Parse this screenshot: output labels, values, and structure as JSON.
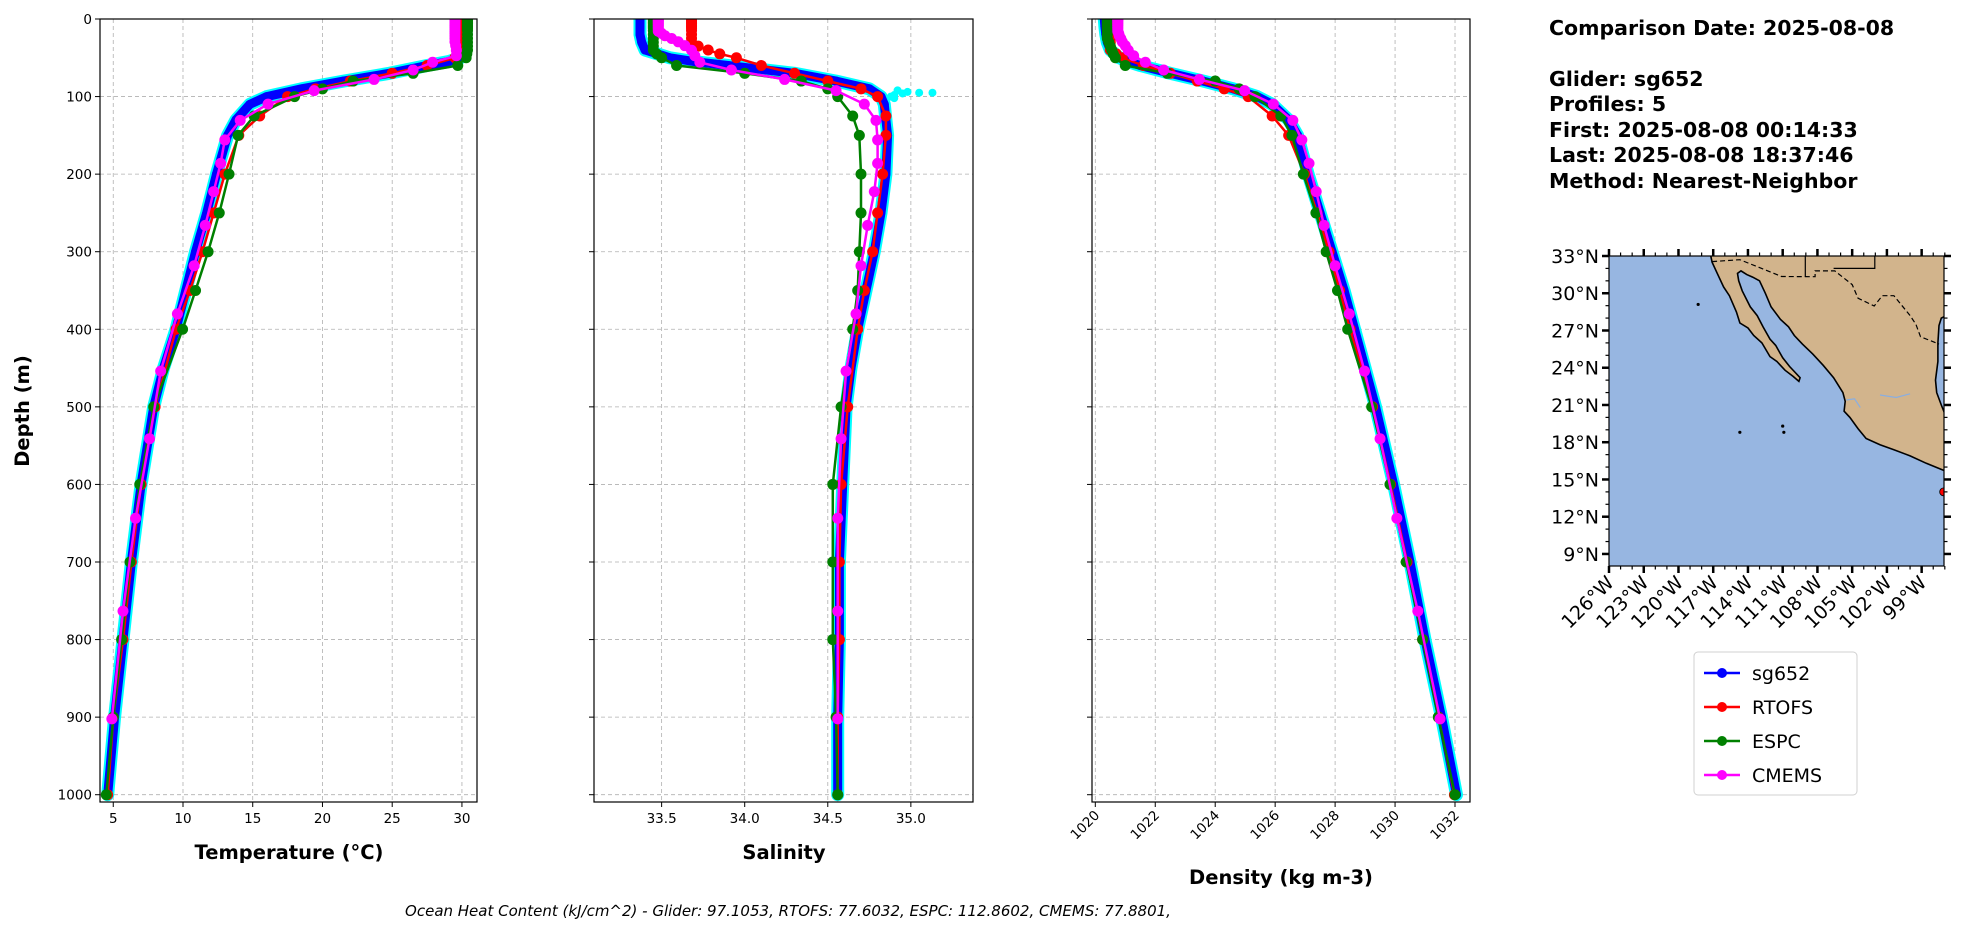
{
  "info": {
    "comparison_date": "Comparison Date: 2025-08-08",
    "glider": "Glider: sg652",
    "profiles": "Profiles: 5",
    "first": "First: 2025-08-08 00:14:33",
    "last": "Last: 2025-08-08 18:37:46",
    "method": "Method: Nearest-Neighbor"
  },
  "footer": "Ocean Heat Content (kJ/cm^2) - Glider: 97.1053,  RTOFS: 77.6032,  ESPC: 112.8602,  CMEMS: 77.8801,",
  "legend": [
    {
      "name": "sg652",
      "color": "#0000ff"
    },
    {
      "name": "RTOFS",
      "color": "#ff0000"
    },
    {
      "name": "ESPC",
      "color": "#008000"
    },
    {
      "name": "CMEMS",
      "color": "#ff00ff"
    }
  ],
  "colors": {
    "glider": "#0000ff",
    "glider_raw": "#00ffff",
    "rtofs": "#ff0000",
    "espc": "#008000",
    "cmems": "#ff00ff",
    "ocean": "#97b6e1",
    "land": "#d2b48c",
    "grid": "#b0b0b0"
  },
  "chart_data": [
    {
      "type": "line",
      "ylabel": "Depth (m)",
      "xlabel": "Temperature (°C)",
      "xlim": [
        4.05,
        31.08
      ],
      "ylim": [
        1009.4,
        0
      ],
      "xticks": [
        5,
        10,
        15,
        20,
        25,
        30
      ],
      "yticks": [
        0,
        100,
        200,
        300,
        400,
        500,
        600,
        700,
        800,
        900,
        1000
      ],
      "grid": true,
      "series": [
        {
          "name": "sg652",
          "depth": [
            0,
            10,
            20,
            30,
            40,
            50,
            55,
            60,
            70,
            80,
            90,
            100,
            110,
            130,
            150,
            200,
            250,
            300,
            350,
            400,
            450,
            500,
            600,
            700,
            800,
            900,
            1000
          ],
          "values": [
            30.3,
            30.3,
            30.3,
            30.2,
            30.1,
            29.9,
            29.0,
            27.5,
            24.8,
            21.5,
            18.5,
            16.0,
            14.8,
            13.8,
            13.2,
            12.4,
            11.7,
            10.9,
            10.2,
            9.5,
            8.6,
            7.9,
            7.0,
            6.3,
            5.7,
            5.1,
            4.6
          ]
        },
        {
          "name": "RTOFS",
          "depth": [
            0,
            2,
            4,
            6,
            8,
            10,
            12,
            15,
            20,
            25,
            30,
            35,
            40,
            45,
            50,
            60,
            70,
            80,
            90,
            100,
            125,
            150,
            200,
            250,
            300,
            350,
            400,
            500,
            600,
            700,
            800,
            900,
            1000
          ],
          "values": [
            29.9,
            29.9,
            29.9,
            29.9,
            29.9,
            29.9,
            29.9,
            29.9,
            29.9,
            29.9,
            29.9,
            29.9,
            29.9,
            29.8,
            29.5,
            27.5,
            25.0,
            22.0,
            19.5,
            17.5,
            15.5,
            14.0,
            13.0,
            12.2,
            11.4,
            10.5,
            9.5,
            8.0,
            7.0,
            6.3,
            5.7,
            5.0,
            4.6
          ]
        },
        {
          "name": "ESPC",
          "depth": [
            0,
            2,
            4,
            6,
            8,
            10,
            12,
            15,
            20,
            25,
            30,
            35,
            40,
            45,
            50,
            60,
            70,
            80,
            90,
            100,
            125,
            150,
            200,
            250,
            300,
            350,
            400,
            500,
            600,
            700,
            800,
            900,
            1000
          ],
          "values": [
            30.4,
            30.4,
            30.4,
            30.4,
            30.4,
            30.4,
            30.4,
            30.4,
            30.4,
            30.4,
            30.4,
            30.4,
            30.4,
            30.35,
            30.3,
            29.7,
            26.5,
            22.2,
            20.0,
            18.0,
            15.1,
            13.95,
            13.3,
            12.6,
            11.8,
            10.9,
            9.97,
            7.9,
            6.9,
            6.2,
            5.6,
            5.0,
            4.5
          ]
        },
        {
          "name": "CMEMS",
          "depth": [
            0.5,
            1.5,
            2.6,
            3.8,
            5.1,
            6.4,
            7.9,
            9.6,
            11.4,
            13.5,
            15.8,
            18.5,
            21.6,
            25.2,
            29.4,
            34.4,
            40.3,
            47.4,
            55.8,
            65.8,
            77.9,
            92.3,
            109.7,
            130.7,
            155.9,
            186.1,
            222.5,
            266.0,
            318.1,
            380.2,
            453.9,
            541.1,
            643.6,
            763.3,
            902.3
          ],
          "values": [
            29.5,
            29.5,
            29.5,
            29.5,
            29.5,
            29.5,
            29.5,
            29.5,
            29.5,
            29.5,
            29.5,
            29.5,
            29.5,
            29.5,
            29.5,
            29.55,
            29.6,
            29.6,
            27.9,
            26.5,
            23.7,
            19.4,
            16.1,
            14.1,
            13.0,
            12.7,
            12.2,
            11.6,
            10.8,
            9.6,
            8.4,
            7.6,
            6.6,
            5.7,
            4.9
          ]
        }
      ]
    },
    {
      "type": "line",
      "xlabel": "Salinity",
      "xlim": [
        33.093,
        35.374
      ],
      "ylim": [
        1009.4,
        0
      ],
      "xticks": [
        "33.5",
        "34.0",
        "34.5",
        "35.0"
      ],
      "yticks": [
        0,
        100,
        200,
        300,
        400,
        500,
        600,
        700,
        800,
        900,
        1000
      ],
      "grid": true,
      "series": [
        {
          "name": "sg652",
          "depth": [
            0,
            10,
            20,
            30,
            40,
            50,
            55,
            60,
            70,
            80,
            90,
            100,
            110,
            130,
            150,
            200,
            250,
            300,
            350,
            400,
            450,
            500,
            600,
            700,
            800,
            900,
            1000
          ],
          "values": [
            33.37,
            33.37,
            33.37,
            33.38,
            33.4,
            33.55,
            33.7,
            33.9,
            34.3,
            34.55,
            34.75,
            34.82,
            34.84,
            34.85,
            34.86,
            34.85,
            34.82,
            34.78,
            34.73,
            34.68,
            34.64,
            34.61,
            34.59,
            34.57,
            34.57,
            34.56,
            34.56
          ],
          "raw_outliers": [
            [
              92,
              34.92
            ],
            [
              94,
              34.98
            ],
            [
              95,
              35.05
            ],
            [
              95,
              35.13
            ],
            [
              96,
              34.95
            ],
            [
              98,
              34.9
            ],
            [
              100,
              34.88
            ],
            [
              102,
              34.9
            ]
          ]
        },
        {
          "name": "RTOFS",
          "depth": [
            0,
            2,
            4,
            6,
            8,
            10,
            12,
            15,
            20,
            25,
            30,
            35,
            40,
            45,
            50,
            60,
            70,
            80,
            90,
            100,
            125,
            150,
            200,
            250,
            300,
            350,
            400,
            500,
            600,
            700,
            800,
            900,
            1000
          ],
          "values": [
            33.68,
            33.68,
            33.68,
            33.68,
            33.68,
            33.68,
            33.68,
            33.68,
            33.68,
            33.68,
            33.68,
            33.72,
            33.78,
            33.85,
            33.95,
            34.1,
            34.3,
            34.5,
            34.7,
            34.8,
            34.85,
            34.85,
            34.83,
            34.8,
            34.77,
            34.72,
            34.68,
            34.62,
            34.58,
            34.57,
            34.57,
            34.56,
            34.56
          ]
        },
        {
          "name": "ESPC",
          "depth": [
            0,
            2,
            4,
            6,
            8,
            10,
            12,
            15,
            20,
            25,
            30,
            35,
            40,
            45,
            50,
            60,
            70,
            80,
            90,
            100,
            125,
            150,
            200,
            250,
            300,
            350,
            400,
            500,
            600,
            700,
            800,
            900,
            1000
          ],
          "values": [
            33.45,
            33.45,
            33.45,
            33.45,
            33.45,
            33.45,
            33.45,
            33.45,
            33.45,
            33.45,
            33.45,
            33.45,
            33.45,
            33.47,
            33.5,
            33.59,
            34.0,
            34.34,
            34.5,
            34.56,
            34.65,
            34.69,
            34.7,
            34.7,
            34.69,
            34.68,
            34.65,
            34.58,
            34.53,
            34.53,
            34.53,
            34.55,
            34.56
          ]
        },
        {
          "name": "CMEMS",
          "depth": [
            0.5,
            1.5,
            2.6,
            3.8,
            5.1,
            6.4,
            7.9,
            9.6,
            11.4,
            13.5,
            15.8,
            18.5,
            21.6,
            25.2,
            29.4,
            34.4,
            40.3,
            47.4,
            55.8,
            65.8,
            77.9,
            92.3,
            109.7,
            130.7,
            155.9,
            186.1,
            222.5,
            266.0,
            318.1,
            380.2,
            453.9,
            541.1,
            643.6,
            763.3,
            902.3
          ],
          "values": [
            33.48,
            33.48,
            33.48,
            33.48,
            33.48,
            33.48,
            33.48,
            33.48,
            33.48,
            33.48,
            33.48,
            33.5,
            33.52,
            33.56,
            33.6,
            33.64,
            33.68,
            33.7,
            33.73,
            33.92,
            34.24,
            34.55,
            34.72,
            34.79,
            34.8,
            34.8,
            34.78,
            34.74,
            34.7,
            34.67,
            34.61,
            34.58,
            34.56,
            34.56,
            34.56
          ]
        }
      ]
    },
    {
      "type": "line",
      "xlabel": "Density (kg m-3)",
      "xlim": [
        1019.89,
        1032.5
      ],
      "ylim": [
        1009.4,
        0
      ],
      "xticks": [
        1020,
        1022,
        1024,
        1026,
        1028,
        1030,
        1032
      ],
      "yticks": [
        0,
        100,
        200,
        300,
        400,
        500,
        600,
        700,
        800,
        900,
        1000
      ],
      "grid": true,
      "series": [
        {
          "name": "sg652",
          "depth": [
            0,
            10,
            20,
            30,
            40,
            50,
            55,
            60,
            70,
            80,
            90,
            100,
            110,
            130,
            150,
            200,
            250,
            300,
            350,
            400,
            450,
            500,
            600,
            700,
            800,
            900,
            1000
          ],
          "values": [
            1020.3,
            1020.32,
            1020.35,
            1020.4,
            1020.5,
            1020.8,
            1021.1,
            1021.5,
            1022.5,
            1023.6,
            1024.6,
            1025.4,
            1025.9,
            1026.45,
            1026.75,
            1027.1,
            1027.5,
            1027.9,
            1028.3,
            1028.65,
            1029.0,
            1029.35,
            1029.95,
            1030.5,
            1031.0,
            1031.55,
            1032.05
          ]
        },
        {
          "name": "RTOFS",
          "depth": [
            0,
            2,
            4,
            6,
            8,
            10,
            12,
            15,
            20,
            25,
            30,
            35,
            40,
            45,
            50,
            60,
            70,
            80,
            90,
            100,
            125,
            150,
            200,
            250,
            300,
            350,
            400,
            500,
            600,
            700,
            800,
            900,
            1000
          ],
          "values": [
            1020.5,
            1020.5,
            1020.5,
            1020.5,
            1020.5,
            1020.5,
            1020.5,
            1020.5,
            1020.5,
            1020.5,
            1020.5,
            1020.5,
            1020.5,
            1020.7,
            1020.9,
            1021.6,
            1022.5,
            1023.4,
            1024.3,
            1025.1,
            1025.9,
            1026.45,
            1026.98,
            1027.4,
            1027.8,
            1028.15,
            1028.5,
            1029.25,
            1029.85,
            1030.4,
            1030.92,
            1031.45,
            1031.98
          ]
        },
        {
          "name": "ESPC",
          "depth": [
            0,
            2,
            4,
            6,
            8,
            10,
            12,
            15,
            20,
            25,
            30,
            35,
            40,
            45,
            50,
            60,
            70,
            80,
            90,
            100,
            125,
            150,
            200,
            250,
            300,
            350,
            400,
            500,
            600,
            700,
            800,
            900,
            1000
          ],
          "values": [
            1020.4,
            1020.4,
            1020.4,
            1020.4,
            1020.4,
            1020.4,
            1020.4,
            1020.4,
            1020.4,
            1020.4,
            1020.45,
            1020.5,
            1020.55,
            1020.6,
            1020.67,
            1021.0,
            1022.4,
            1024.0,
            1024.8,
            1025.33,
            1026.19,
            1026.56,
            1026.94,
            1027.36,
            1027.7,
            1028.08,
            1028.42,
            1029.22,
            1029.83,
            1030.37,
            1030.92,
            1031.44,
            1032.0
          ]
        },
        {
          "name": "CMEMS",
          "depth": [
            0.5,
            1.5,
            2.6,
            3.8,
            5.1,
            6.4,
            7.9,
            9.6,
            11.4,
            13.5,
            15.8,
            18.5,
            21.6,
            25.2,
            29.4,
            34.4,
            40.3,
            47.4,
            55.8,
            65.8,
            77.9,
            92.3,
            109.7,
            130.7,
            155.9,
            186.1,
            222.5,
            266.0,
            318.1,
            380.2,
            453.9,
            541.1,
            643.6,
            763.3,
            902.3
          ],
          "values": [
            1020.75,
            1020.75,
            1020.75,
            1020.75,
            1020.75,
            1020.75,
            1020.75,
            1020.75,
            1020.75,
            1020.75,
            1020.75,
            1020.78,
            1020.8,
            1020.85,
            1020.9,
            1021.0,
            1021.1,
            1021.28,
            1021.67,
            1022.28,
            1023.47,
            1024.98,
            1025.94,
            1026.59,
            1026.89,
            1027.13,
            1027.37,
            1027.63,
            1028.0,
            1028.47,
            1028.98,
            1029.5,
            1030.06,
            1030.76,
            1031.5
          ]
        }
      ]
    }
  ],
  "map": {
    "lon_range": [
      -126,
      -97.07
    ],
    "lat_range": [
      8.03,
      33
    ],
    "lon_ticks": [
      "126°W",
      "123°W",
      "120°W",
      "117°W",
      "114°W",
      "111°W",
      "108°W",
      "105°W",
      "102°W",
      "99°W"
    ],
    "lat_ticks": [
      "9°N",
      "12°N",
      "15°N",
      "18°N",
      "21°N",
      "24°N",
      "27°N",
      "30°N",
      "33°N"
    ],
    "glider_location": [
      -97.1,
      14.0
    ],
    "glider_marker_color": "#ff0000"
  }
}
